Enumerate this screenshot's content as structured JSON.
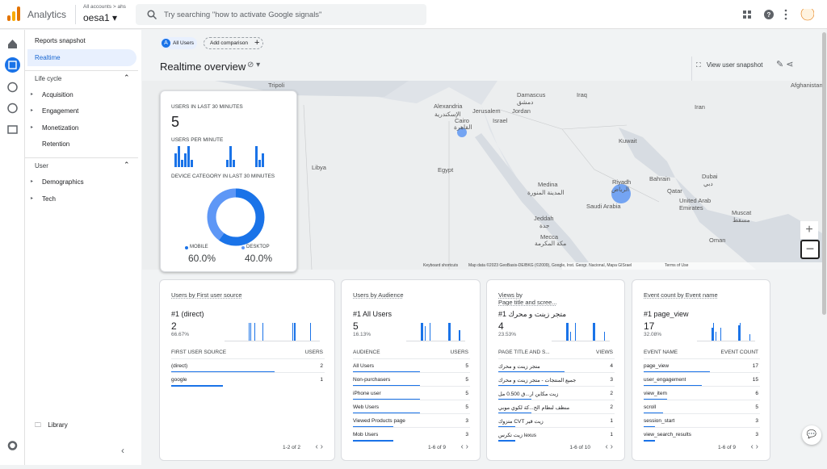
{
  "header": {
    "product": "Analytics",
    "account_path": "All accounts > ahs",
    "property": "oesa1",
    "search_placeholder": "Try searching \"how to activate Google signals\""
  },
  "sidebar": {
    "top_items": [
      "Reports snapshot",
      "Realtime"
    ],
    "sections": [
      {
        "title": "Life cycle",
        "items": [
          "Acquisition",
          "Engagement",
          "Monetization",
          "Retention"
        ]
      },
      {
        "title": "User",
        "items": [
          "Demographics",
          "Tech"
        ]
      }
    ],
    "library": "Library"
  },
  "toolbar": {
    "segment": "All Users",
    "add_comparison": "Add comparison",
    "page_title": "Realtime overview",
    "snapshot": "View user snapshot"
  },
  "map": {
    "labels": [
      "Tripoli",
      "Alexandria",
      "الإسكندرية",
      "Cairo",
      "القاهرة",
      "Jerusalem",
      "Damascus",
      "دمشق",
      "Iraq",
      "Jordan",
      "Israel",
      "Iran",
      "Kuwait",
      "Libya",
      "Egypt",
      "Medina",
      "المدينة المنورة",
      "Riyadh",
      "الرياض",
      "Saudi Arabia",
      "Bahrain",
      "Qatar",
      "Dubai",
      "دبي",
      "United Arab Emirates",
      "Muscat",
      "مسقط",
      "Jeddah",
      "جدة",
      "Mecca",
      "مكة المكرمة",
      "Oman",
      "Afghanistan"
    ],
    "footer": [
      "Keyboard shortcuts",
      "Map data ©2023 GeoBasis-DE/BKG (©2009), Google, Inst. Geogr. Nacional, Mapa GISrael",
      "Terms of Use"
    ]
  },
  "summary": {
    "users_label": "USERS IN LAST 30 MINUTES",
    "users": "5",
    "per_minute_label": "USERS PER MINUTE",
    "per_minute": [
      2,
      3,
      1,
      2,
      3,
      1,
      0,
      0,
      0,
      0,
      0,
      0,
      0,
      0,
      0,
      0,
      1,
      3,
      1,
      0,
      0,
      0,
      0,
      0,
      0,
      3,
      1,
      2,
      0,
      0
    ],
    "device_label": "DEVICE CATEGORY IN LAST 30 MINUTES",
    "devices": [
      {
        "name": "MOBILE",
        "value": 60,
        "label": "60.0%",
        "color": "#1a73e8"
      },
      {
        "name": "DESKTOP",
        "value": 40,
        "label": "40.0%",
        "color": "#5e97f6"
      }
    ]
  },
  "cards": [
    {
      "title": [
        "Users by First user source"
      ],
      "top": "#1 (direct)",
      "value": "2",
      "share": "66.67%",
      "minutes": [
        0,
        0,
        0,
        0,
        0,
        0,
        0,
        0,
        0,
        0,
        0,
        0,
        2,
        2,
        0,
        2,
        0,
        0,
        0,
        2,
        0,
        0,
        0,
        0,
        0,
        0,
        0,
        0,
        0,
        0,
        0,
        0,
        0,
        0,
        2,
        2,
        0,
        0,
        0,
        0,
        0,
        0,
        0,
        2,
        0,
        0,
        0,
        0
      ],
      "columns": [
        "FIRST USER SOURCE",
        "USERS"
      ],
      "rows": [
        [
          "(direct)",
          2
        ],
        [
          "google",
          1
        ]
      ],
      "pager": "1-2 of 2"
    },
    {
      "title": [
        "Users  by Audience"
      ],
      "top": "#1 All Users",
      "value": "5",
      "share": "16.13%",
      "minutes": [
        0,
        0,
        0,
        0,
        0,
        0,
        0,
        0,
        0,
        0,
        0,
        0,
        5,
        5,
        0,
        4,
        0,
        0,
        0,
        5,
        0,
        0,
        0,
        0,
        0,
        0,
        0,
        0,
        0,
        0,
        0,
        0,
        0,
        0,
        5,
        5,
        0,
        0,
        0,
        0,
        0,
        0,
        0,
        3,
        0,
        0,
        0,
        0
      ],
      "columns": [
        "AUDIENCE",
        "USERS"
      ],
      "rows": [
        [
          "All Users",
          5
        ],
        [
          "Non-purchasers",
          5
        ],
        [
          "iPhone user",
          5
        ],
        [
          "Web Users",
          5
        ],
        [
          "Viewed Products page",
          3
        ],
        [
          "Mob Users",
          3
        ]
      ],
      "pager": "1-6 of 9"
    },
    {
      "title": [
        "Views by",
        "Page title and scree..."
      ],
      "top": "#1 متجر زينت و محرك",
      "value": "4",
      "share": "23.53%",
      "minutes": [
        0,
        0,
        0,
        0,
        0,
        0,
        0,
        0,
        0,
        0,
        0,
        0,
        4,
        4,
        0,
        2,
        0,
        0,
        0,
        4,
        0,
        0,
        0,
        0,
        0,
        0,
        0,
        0,
        0,
        0,
        0,
        0,
        0,
        0,
        4,
        4,
        0,
        0,
        0,
        0,
        0,
        0,
        0,
        2,
        0,
        0,
        0,
        0
      ],
      "columns": [
        "PAGE TITLE AND S...",
        "VIEWS"
      ],
      "rows": [
        [
          "متجر زينت و محرك",
          4
        ],
        [
          "جميع المنتجات - متجر زينت و محرك",
          3
        ],
        [
          "زيت مكاين ار...ق 0.500 مل",
          2
        ],
        [
          "منظف لنظام الح...كة لكوي موبي",
          2
        ],
        [
          "متزوك CVT زيت قير",
          1
        ],
        [
          "زيت تكرس lexus",
          1
        ]
      ],
      "pager": "1-6 of 10"
    },
    {
      "title": [
        "Event count by Event name"
      ],
      "top": "#1 page_view",
      "value": "17",
      "share": "32.08%",
      "minutes": [
        0,
        0,
        0,
        0,
        0,
        0,
        0,
        0,
        0,
        0,
        0,
        0,
        6,
        8,
        0,
        4,
        0,
        0,
        0,
        6,
        0,
        0,
        0,
        0,
        0,
        0,
        0,
        0,
        0,
        0,
        0,
        0,
        0,
        0,
        7,
        8,
        0,
        0,
        0,
        0,
        0,
        0,
        0,
        3,
        0,
        0,
        0,
        0
      ],
      "columns": [
        "EVENT NAME",
        "EVENT COUNT"
      ],
      "rows": [
        [
          "page_view",
          17
        ],
        [
          "user_engagement",
          15
        ],
        [
          "view_item",
          6
        ],
        [
          "scroll",
          5
        ],
        [
          "session_start",
          3
        ],
        [
          "view_search_results",
          3
        ]
      ],
      "pager": "1-6 of 9"
    }
  ]
}
